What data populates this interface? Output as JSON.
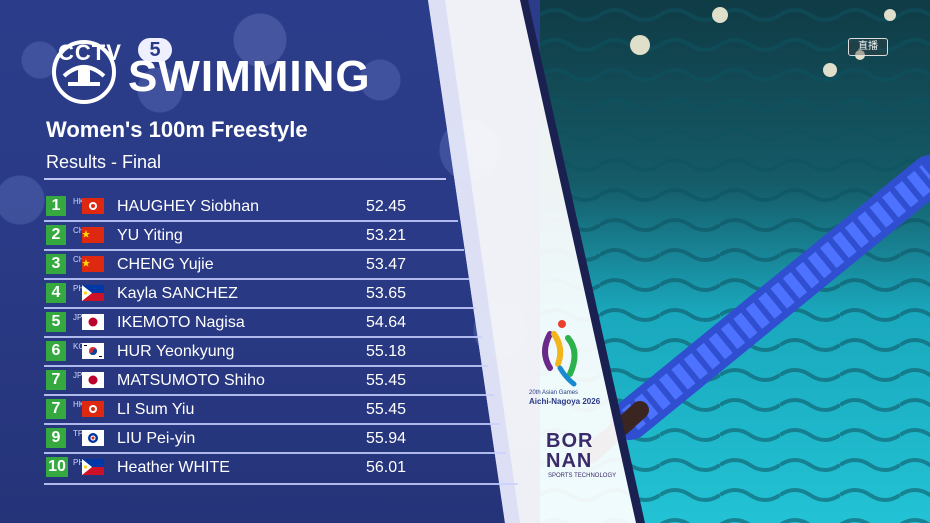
{
  "broadcast": {
    "channel_name": "CCTV",
    "channel_number": "5",
    "live_badge": "直播"
  },
  "event": {
    "category": "SWIMMING",
    "title": "Women's 100m Freestyle",
    "subtitle": "Results - Final"
  },
  "results": [
    {
      "rank": "1",
      "noc": "HKG",
      "flag": "hkg",
      "name": "HAUGHEY Siobhan",
      "time": "52.45"
    },
    {
      "rank": "2",
      "noc": "CHN",
      "flag": "chn",
      "name": "YU Yiting",
      "time": "53.21"
    },
    {
      "rank": "3",
      "noc": "CHN",
      "flag": "chn",
      "name": "CHENG Yujie",
      "time": "53.47"
    },
    {
      "rank": "4",
      "noc": "PHI",
      "flag": "phi",
      "name": "Kayla SANCHEZ",
      "time": "53.65"
    },
    {
      "rank": "5",
      "noc": "JPN",
      "flag": "jpn",
      "name": "IKEMOTO Nagisa",
      "time": "54.64"
    },
    {
      "rank": "6",
      "noc": "KOR",
      "flag": "kor",
      "name": "HUR Yeonkyung",
      "time": "55.18"
    },
    {
      "rank": "7",
      "noc": "JPN",
      "flag": "jpn",
      "name": "MATSUMOTO Shiho",
      "time": "55.45"
    },
    {
      "rank": "7",
      "noc": "HKG",
      "flag": "hkg",
      "name": "LI Sum Yiu",
      "time": "55.45"
    },
    {
      "rank": "9",
      "noc": "TPE",
      "flag": "tpe",
      "name": "LIU Pei-yin",
      "time": "55.94"
    },
    {
      "rank": "10",
      "noc": "PHI",
      "flag": "phi",
      "name": "Heather WHITE",
      "time": "56.01"
    }
  ],
  "games": {
    "caption_line1": "20th Asian Games",
    "caption_line2": "Aichi-Nagoya 2026"
  },
  "sponsor": {
    "line1": "BOR",
    "line2": "NAN",
    "line3": "SPORTS TECHNOLOGY"
  },
  "colors": {
    "panel": "#2a3a86",
    "rank_badge": "#35a83f",
    "pool": "#1fb4c8"
  },
  "icons": {
    "channel_logo": "cctv-logo",
    "games_logo": "asian-games-logo"
  }
}
